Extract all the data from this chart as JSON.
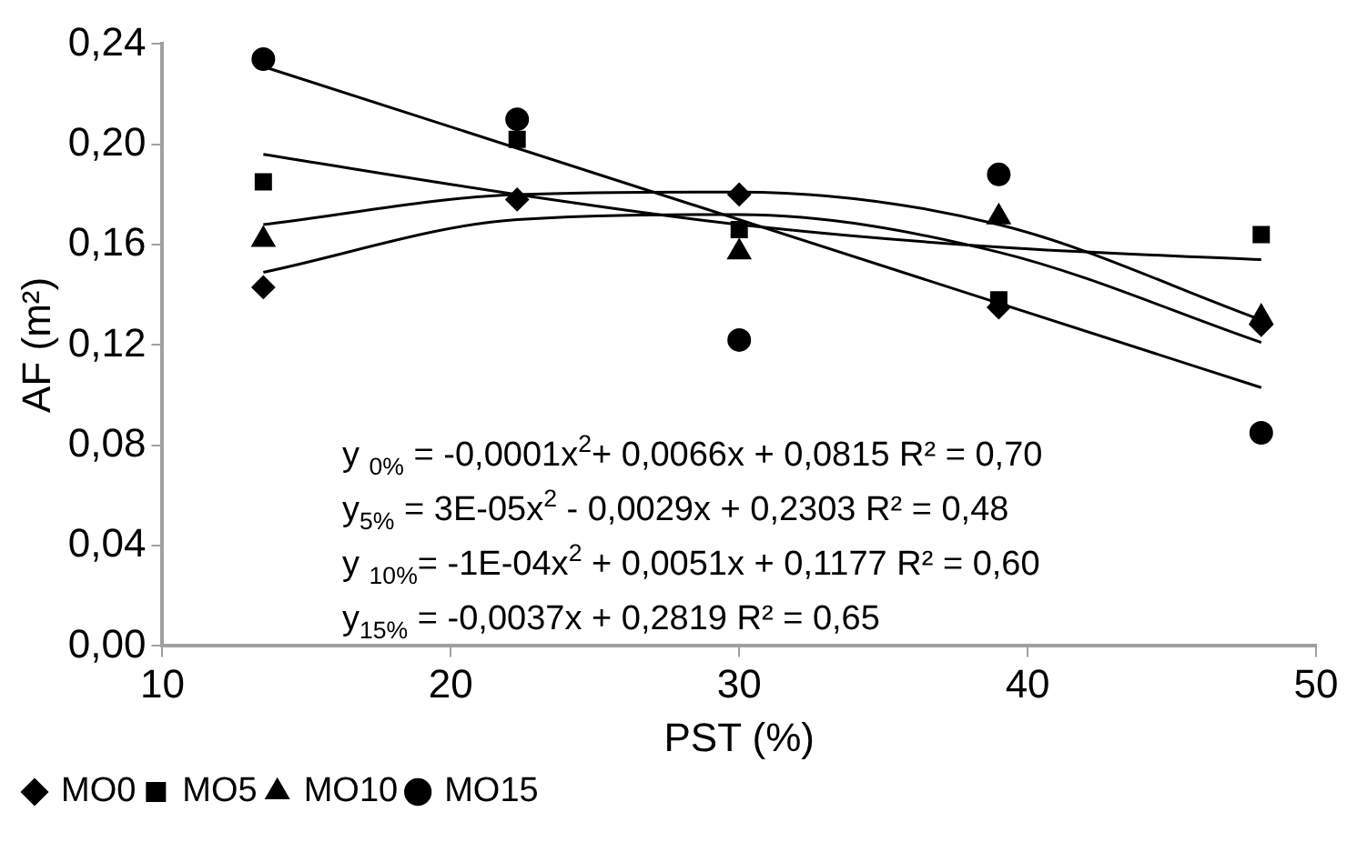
{
  "chart_data": {
    "type": "scatter",
    "xlabel": "PST (%)",
    "ylabel": "AF (m²)",
    "x": [
      13.5,
      22.3,
      30.0,
      39.0,
      48.1
    ],
    "xlim": [
      10,
      50
    ],
    "xticks": [
      10,
      20,
      30,
      40,
      50
    ],
    "ylim": [
      0,
      0.24
    ],
    "yticks": [
      {
        "value": 0,
        "label": "0,00"
      },
      {
        "value": 0.04,
        "label": "0,04"
      },
      {
        "value": 0.08,
        "label": "0,08"
      },
      {
        "value": 0.12,
        "label": "0,12"
      },
      {
        "value": 0.16,
        "label": "0,16"
      },
      {
        "value": 0.2,
        "label": "0,20"
      },
      {
        "value": 0.24,
        "label": "0,24"
      }
    ],
    "grid": false,
    "legend": "bottom left",
    "series": [
      {
        "name": "MO0",
        "color": "#000000",
        "marker": "diamond",
        "values": [
          0.143,
          0.178,
          0.18,
          0.135,
          0.128
        ]
      },
      {
        "name": "MO5",
        "color": "#000000",
        "marker": "square",
        "values": [
          0.185,
          0.202,
          0.166,
          0.138,
          0.164
        ]
      },
      {
        "name": "MO10",
        "color": "#000000",
        "marker": "triangle",
        "values": [
          0.162,
          null,
          0.157,
          0.171,
          0.131
        ]
      },
      {
        "name": "MO15",
        "color": "#000000",
        "marker": "circle",
        "values": [
          0.234,
          0.21,
          0.122,
          0.188,
          0.085
        ]
      },
      {
        "type": "line",
        "color": "#000000",
        "marker": "none",
        "x": [
          13.5,
          48.1
        ],
        "values": [
          0.231,
          0.103
        ]
      },
      {
        "type": "line",
        "color": "#000000",
        "marker": "none",
        "x": [
          13.5,
          22.3,
          30.0,
          39.0,
          48.1
        ],
        "values": [
          0.196,
          0.18,
          0.168,
          0.159,
          0.154
        ]
      },
      {
        "type": "line",
        "color": "#000000",
        "marker": "none",
        "x": [
          13.5,
          22.3,
          30.0,
          39.0,
          48.1
        ],
        "values": [
          0.168,
          0.18,
          0.181,
          0.168,
          0.13
        ]
      },
      {
        "type": "line",
        "color": "#000000",
        "marker": "none",
        "x": [
          13.5,
          22.3,
          30.0,
          39.0,
          48.1
        ],
        "values": [
          0.149,
          0.17,
          0.172,
          0.157,
          0.121
        ]
      }
    ],
    "annotations": [
      "y $_{0%}$ = -0,0001x$^{2}$+ 0,0066x + 0,0815 R² = 0,70",
      "y$_{5%}$ = 3E-05x$^{2}$ - 0,0029x + 0,2303 R² = 0,48",
      "y $_{10%}$= -1E-04x$^{2}$ + 0,0051x + 0,1177 R² = 0,60",
      "y$_{15%}$ = -0,0037x + 0,2819 R² = 0,65"
    ]
  }
}
